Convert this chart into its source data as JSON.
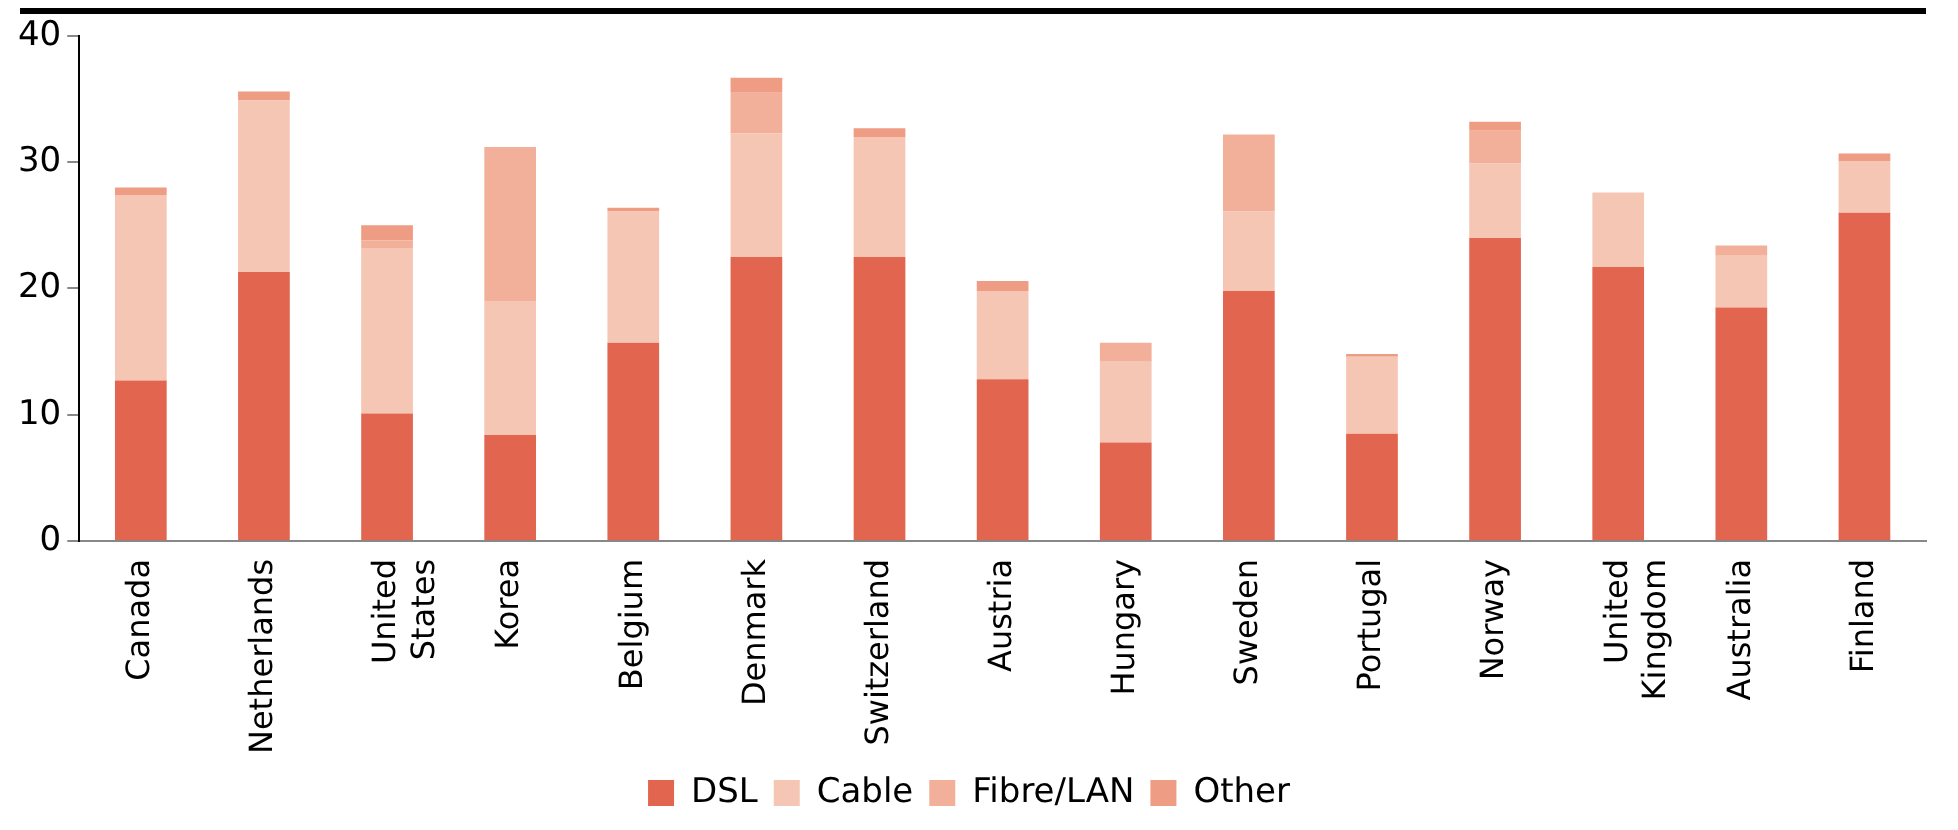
{
  "chart_data": {
    "type": "bar",
    "stacked": true,
    "categories": [
      "Canada",
      "Netherlands",
      "United States",
      "Korea",
      "Belgium",
      "Denmark",
      "Switzerland",
      "Austria",
      "Hungary",
      "Sweden",
      "Portugal",
      "Norway",
      "United Kingdom",
      "Australia",
      "Finland"
    ],
    "series": [
      {
        "name": "DSL",
        "color": "#e2654f",
        "values": [
          12.7,
          21.3,
          10.1,
          8.4,
          15.7,
          22.5,
          22.5,
          12.8,
          7.8,
          19.8,
          8.5,
          24.0,
          21.7,
          18.5,
          26.0
        ]
      },
      {
        "name": "Cable",
        "color": "#f6c6b5",
        "values": [
          14.7,
          13.6,
          13.1,
          10.6,
          10.4,
          9.8,
          9.5,
          7.0,
          6.4,
          6.3,
          6.1,
          5.9,
          5.9,
          4.1,
          4.1
        ]
      },
      {
        "name": "Fibre/LAN",
        "color": "#f2b09a",
        "values": [
          null,
          null,
          0.6,
          12.2,
          null,
          3.2,
          null,
          null,
          1.5,
          6.1,
          null,
          2.6,
          null,
          0.8,
          null
        ]
      },
      {
        "name": "Other",
        "color": "#ef9c84",
        "values": [
          0.6,
          0.7,
          1.2,
          null,
          0.3,
          1.2,
          0.7,
          0.8,
          null,
          null,
          0.2,
          0.7,
          null,
          null,
          0.6
        ]
      }
    ],
    "ylim": [
      0,
      40
    ],
    "yticks": [
      0,
      10,
      20,
      30,
      40
    ],
    "grid": false,
    "legend": "bottom"
  }
}
